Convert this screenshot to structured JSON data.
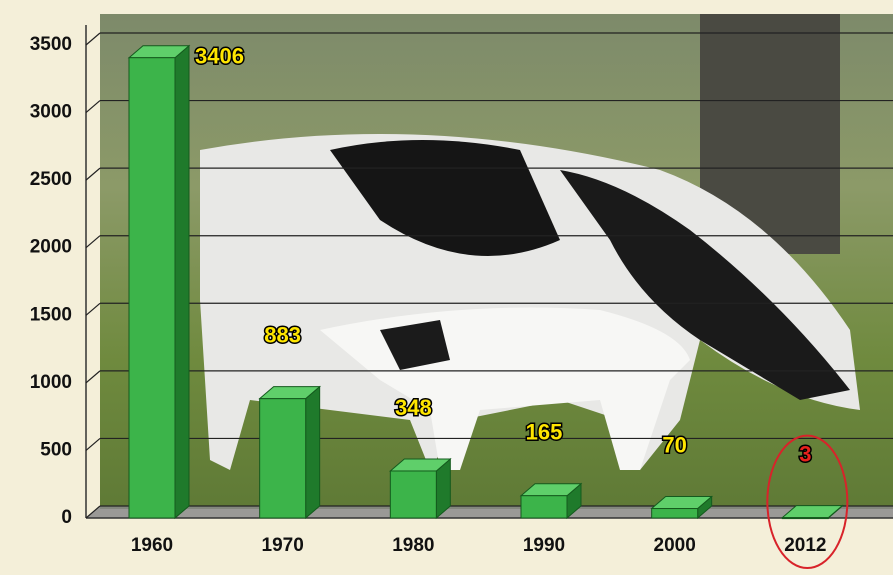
{
  "chart_data": {
    "type": "bar3d",
    "categories": [
      "1960",
      "1970",
      "1980",
      "1990",
      "2000",
      "2012"
    ],
    "values": [
      3406,
      883,
      348,
      165,
      70,
      3
    ],
    "color": "#3cb44a",
    "label_colors": [
      "#ffe600",
      "#ffe600",
      "#ffe600",
      "#ffe600",
      "#ffe600",
      "#e8221c"
    ],
    "circled": [
      false,
      false,
      false,
      false,
      false,
      true
    ],
    "circle_color": "#d8232a",
    "ylim": [
      0,
      3500
    ],
    "yticks": [
      0,
      500,
      1000,
      1500,
      2000,
      2500,
      3000,
      3500
    ],
    "grid": true
  }
}
